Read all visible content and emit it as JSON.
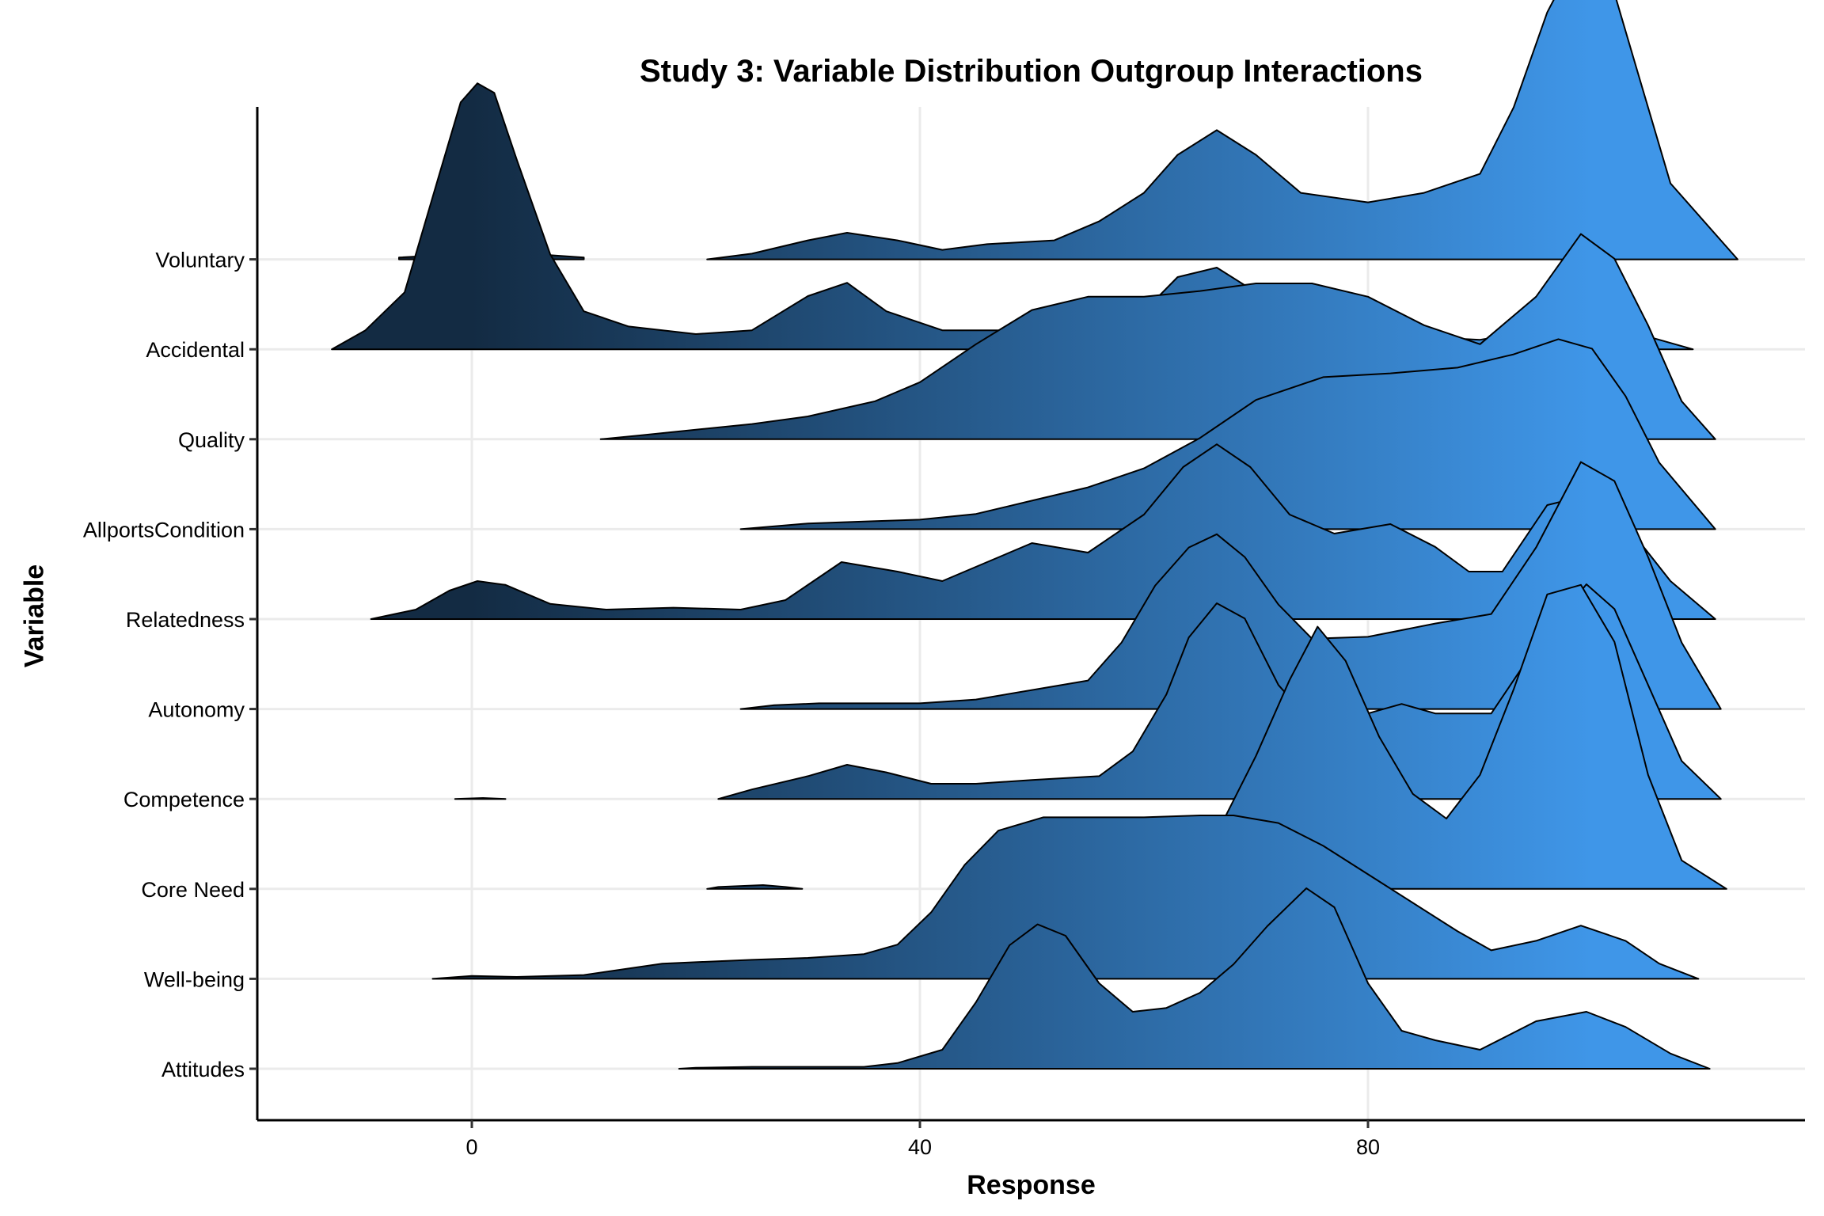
{
  "chart_data": {
    "type": "area",
    "subtype": "ridgeline",
    "title": "Study 3: Variable Distribution Outgroup Interactions",
    "xlabel": "Response",
    "ylabel": "Variable",
    "xlim": [
      -19,
      119
    ],
    "xticks": [
      0,
      40,
      80
    ],
    "grid": true,
    "legend": "none",
    "gradient": {
      "low": "#132b43",
      "high": "#3f96e8",
      "from_x": 0,
      "to_x": 100
    },
    "categories": [
      "Attitudes",
      "Well-being",
      "Core Need",
      "Competence",
      "Autonomy",
      "Relatedness",
      "AllportsCondition",
      "Quality",
      "Accidental",
      "Voluntary"
    ],
    "series": [
      {
        "name": "Attitudes",
        "points": [
          [
            18.5,
            0
          ],
          [
            20,
            0.005
          ],
          [
            25,
            0.01
          ],
          [
            30,
            0.01
          ],
          [
            35,
            0.01
          ],
          [
            38,
            0.03
          ],
          [
            42,
            0.1
          ],
          [
            45,
            0.35
          ],
          [
            48,
            0.65
          ],
          [
            50.5,
            0.76
          ],
          [
            53,
            0.7
          ],
          [
            56,
            0.45
          ],
          [
            59,
            0.3
          ],
          [
            62,
            0.32
          ],
          [
            65,
            0.4
          ],
          [
            68,
            0.55
          ],
          [
            71,
            0.75
          ],
          [
            74.5,
            0.95
          ],
          [
            77,
            0.85
          ],
          [
            80,
            0.45
          ],
          [
            83,
            0.2
          ],
          [
            86,
            0.15
          ],
          [
            90,
            0.1
          ],
          [
            95,
            0.25
          ],
          [
            99.5,
            0.3
          ],
          [
            103,
            0.22
          ],
          [
            107,
            0.08
          ],
          [
            110.5,
            0
          ]
        ]
      },
      {
        "name": "Well-being",
        "points": [
          [
            -3.5,
            0
          ],
          [
            0,
            0.015
          ],
          [
            4,
            0.01
          ],
          [
            10,
            0.02
          ],
          [
            17,
            0.08
          ],
          [
            25,
            0.1
          ],
          [
            30,
            0.11
          ],
          [
            35,
            0.13
          ],
          [
            38,
            0.18
          ],
          [
            41,
            0.35
          ],
          [
            44,
            0.6
          ],
          [
            47,
            0.78
          ],
          [
            51,
            0.85
          ],
          [
            56,
            0.85
          ],
          [
            60,
            0.85
          ],
          [
            65,
            0.86
          ],
          [
            68,
            0.86
          ],
          [
            72,
            0.82
          ],
          [
            76,
            0.7
          ],
          [
            80,
            0.55
          ],
          [
            84,
            0.4
          ],
          [
            88,
            0.25
          ],
          [
            91,
            0.15
          ],
          [
            95,
            0.2
          ],
          [
            99,
            0.28
          ],
          [
            103,
            0.2
          ],
          [
            106,
            0.08
          ],
          [
            109.5,
            0
          ]
        ]
      },
      {
        "name": "Core Need",
        "points": [
          [
            21,
            0
          ],
          [
            22,
            0.01
          ],
          [
            26,
            0.02
          ],
          [
            28,
            0.01
          ],
          [
            29.5,
            0
          ],
          [
            29.6,
            null
          ],
          [
            42.5,
            0
          ],
          [
            45,
            0.05
          ],
          [
            50,
            0.1
          ],
          [
            55,
            0.1
          ],
          [
            60,
            0.08
          ],
          [
            64,
            0.15
          ],
          [
            67,
            0.35
          ],
          [
            70,
            0.7
          ],
          [
            73,
            1.1
          ],
          [
            75.5,
            1.38
          ],
          [
            78,
            1.2
          ],
          [
            81,
            0.8
          ],
          [
            84,
            0.5
          ],
          [
            87,
            0.37
          ],
          [
            90,
            0.6
          ],
          [
            93,
            1.05
          ],
          [
            96,
            1.55
          ],
          [
            99,
            1.6
          ],
          [
            102,
            1.3
          ],
          [
            105,
            0.6
          ],
          [
            108,
            0.15
          ],
          [
            112,
            0
          ]
        ]
      },
      {
        "name": "Competence",
        "points": [
          [
            -1.5,
            0
          ],
          [
            1,
            0.005
          ],
          [
            3,
            0
          ],
          [
            3.1,
            null
          ],
          [
            22,
            0
          ],
          [
            25,
            0.05
          ],
          [
            30,
            0.12
          ],
          [
            33.5,
            0.18
          ],
          [
            37,
            0.14
          ],
          [
            41,
            0.08
          ],
          [
            45,
            0.08
          ],
          [
            50,
            0.1
          ],
          [
            56,
            0.12
          ],
          [
            59,
            0.25
          ],
          [
            62,
            0.55
          ],
          [
            64,
            0.85
          ],
          [
            66.5,
            1.03
          ],
          [
            69,
            0.95
          ],
          [
            72,
            0.6
          ],
          [
            75,
            0.4
          ],
          [
            80,
            0.45
          ],
          [
            83,
            0.5
          ],
          [
            86,
            0.45
          ],
          [
            91,
            0.45
          ],
          [
            95,
            0.8
          ],
          [
            99.5,
            1.13
          ],
          [
            102,
            1.0
          ],
          [
            105,
            0.6
          ],
          [
            108,
            0.2
          ],
          [
            111.5,
            0
          ]
        ]
      },
      {
        "name": "Autonomy",
        "points": [
          [
            24,
            0
          ],
          [
            27,
            0.02
          ],
          [
            31,
            0.03
          ],
          [
            35,
            0.03
          ],
          [
            40,
            0.03
          ],
          [
            45,
            0.05
          ],
          [
            50,
            0.1
          ],
          [
            55,
            0.15
          ],
          [
            58,
            0.35
          ],
          [
            61,
            0.65
          ],
          [
            64,
            0.85
          ],
          [
            66.5,
            0.92
          ],
          [
            69,
            0.8
          ],
          [
            72,
            0.55
          ],
          [
            75,
            0.37
          ],
          [
            80,
            0.38
          ],
          [
            86,
            0.45
          ],
          [
            91,
            0.5
          ],
          [
            95,
            0.85
          ],
          [
            99,
            1.3
          ],
          [
            102,
            1.2
          ],
          [
            105,
            0.8
          ],
          [
            108,
            0.35
          ],
          [
            111.5,
            0
          ]
        ]
      },
      {
        "name": "Relatedness",
        "points": [
          [
            -9,
            0
          ],
          [
            -5,
            0.05
          ],
          [
            -2,
            0.15
          ],
          [
            0.5,
            0.2
          ],
          [
            3,
            0.18
          ],
          [
            7,
            0.08
          ],
          [
            12,
            0.05
          ],
          [
            18,
            0.06
          ],
          [
            24,
            0.05
          ],
          [
            28,
            0.1
          ],
          [
            33,
            0.3
          ],
          [
            38,
            0.25
          ],
          [
            42,
            0.2
          ],
          [
            46,
            0.3
          ],
          [
            50,
            0.4
          ],
          [
            55,
            0.35
          ],
          [
            60,
            0.55
          ],
          [
            63.5,
            0.8
          ],
          [
            66.5,
            0.92
          ],
          [
            69.5,
            0.8
          ],
          [
            73,
            0.55
          ],
          [
            77,
            0.45
          ],
          [
            82,
            0.5
          ],
          [
            86,
            0.38
          ],
          [
            89,
            0.25
          ],
          [
            92,
            0.25
          ],
          [
            96,
            0.6
          ],
          [
            99.5,
            0.65
          ],
          [
            103,
            0.5
          ],
          [
            107,
            0.2
          ],
          [
            111,
            0
          ]
        ]
      },
      {
        "name": "AllportsCondition",
        "points": [
          [
            24,
            0
          ],
          [
            30,
            0.03
          ],
          [
            35,
            0.04
          ],
          [
            40,
            0.05
          ],
          [
            45,
            0.08
          ],
          [
            50,
            0.15
          ],
          [
            55,
            0.22
          ],
          [
            60,
            0.32
          ],
          [
            65,
            0.48
          ],
          [
            70,
            0.68
          ],
          [
            76,
            0.8
          ],
          [
            82,
            0.82
          ],
          [
            88,
            0.85
          ],
          [
            93,
            0.92
          ],
          [
            97,
            1.0
          ],
          [
            100,
            0.95
          ],
          [
            103,
            0.7
          ],
          [
            106,
            0.35
          ],
          [
            111,
            0
          ]
        ]
      },
      {
        "name": "Quality",
        "points": [
          [
            11.5,
            0
          ],
          [
            15,
            0.02
          ],
          [
            20,
            0.05
          ],
          [
            25,
            0.08
          ],
          [
            30,
            0.12
          ],
          [
            36,
            0.2
          ],
          [
            40,
            0.3
          ],
          [
            45,
            0.5
          ],
          [
            50,
            0.68
          ],
          [
            55,
            0.75
          ],
          [
            60,
            0.75
          ],
          [
            65,
            0.78
          ],
          [
            70,
            0.82
          ],
          [
            75,
            0.82
          ],
          [
            80,
            0.75
          ],
          [
            85,
            0.6
          ],
          [
            90,
            0.5
          ],
          [
            95,
            0.75
          ],
          [
            99,
            1.08
          ],
          [
            102,
            0.95
          ],
          [
            105,
            0.6
          ],
          [
            108,
            0.2
          ],
          [
            111,
            0
          ]
        ]
      },
      {
        "name": "Accidental",
        "points": [
          [
            -12.5,
            0
          ],
          [
            -9.5,
            0.1
          ],
          [
            -6,
            0.3
          ],
          [
            -3,
            0.9
          ],
          [
            -1,
            1.3
          ],
          [
            0.5,
            1.4
          ],
          [
            2,
            1.35
          ],
          [
            4,
            1.0
          ],
          [
            7,
            0.5
          ],
          [
            10,
            0.2
          ],
          [
            14,
            0.12
          ],
          [
            20,
            0.08
          ],
          [
            25,
            0.1
          ],
          [
            30,
            0.28
          ],
          [
            33.5,
            0.35
          ],
          [
            37,
            0.2
          ],
          [
            42,
            0.1
          ],
          [
            50,
            0.1
          ],
          [
            57,
            0.1
          ],
          [
            60,
            0.2
          ],
          [
            63,
            0.38
          ],
          [
            66.5,
            0.43
          ],
          [
            70,
            0.3
          ],
          [
            75,
            0.12
          ],
          [
            80,
            0.08
          ],
          [
            90,
            0.05
          ],
          [
            95,
            0.1
          ],
          [
            99.5,
            0.18
          ],
          [
            103,
            0.1
          ],
          [
            109,
            0
          ]
        ]
      },
      {
        "name": "Voluntary",
        "points": [
          [
            -6.5,
            0.01
          ],
          [
            0,
            0.03
          ],
          [
            5,
            0.03
          ],
          [
            10,
            0.01
          ],
          [
            10.1,
            null
          ],
          [
            21,
            0
          ],
          [
            25,
            0.03
          ],
          [
            30,
            0.1
          ],
          [
            33.5,
            0.14
          ],
          [
            38,
            0.1
          ],
          [
            42,
            0.05
          ],
          [
            46,
            0.08
          ],
          [
            52,
            0.1
          ],
          [
            56,
            0.2
          ],
          [
            60,
            0.35
          ],
          [
            63,
            0.55
          ],
          [
            66.5,
            0.68
          ],
          [
            70,
            0.55
          ],
          [
            74,
            0.35
          ],
          [
            80,
            0.3
          ],
          [
            85,
            0.35
          ],
          [
            90,
            0.45
          ],
          [
            93,
            0.8
          ],
          [
            96,
            1.3
          ],
          [
            99,
            1.64
          ],
          [
            101,
            1.6
          ],
          [
            104,
            1.0
          ],
          [
            107,
            0.4
          ],
          [
            113,
            0
          ]
        ]
      }
    ]
  }
}
